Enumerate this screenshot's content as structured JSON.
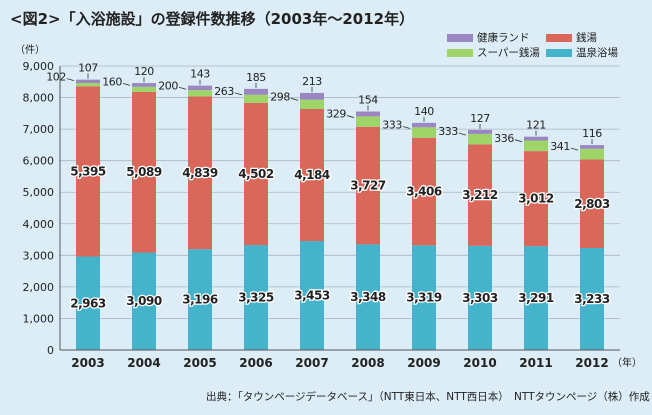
{
  "title": "<図2>「入浴施設」の登録件数推移（2003年〜2012年）",
  "source": "出典：「タウンページデータベース」（NTT東日本、NTT西日本）　NTTタウンページ（株）作成",
  "colors": {
    "健康ランド": "#9b86c2",
    "銭湯": "#d9675a",
    "スーパー銭湯": "#9fd468",
    "温泉浴場": "#45b3c9",
    "background": "#dcedf7",
    "gridline": "#a9b7c2"
  },
  "chart_data": {
    "type": "bar",
    "stacked": true,
    "categories": [
      "2003",
      "2004",
      "2005",
      "2006",
      "2007",
      "2008",
      "2009",
      "2010",
      "2011",
      "2012"
    ],
    "series": [
      {
        "name": "温泉浴場",
        "values": [
          2963,
          3090,
          3196,
          3325,
          3453,
          3348,
          3319,
          3303,
          3291,
          3233
        ]
      },
      {
        "name": "銭湯",
        "values": [
          5395,
          5089,
          4839,
          4502,
          4184,
          3727,
          3406,
          3212,
          3012,
          2803
        ]
      },
      {
        "name": "スーパー銭湯",
        "values": [
          102,
          160,
          200,
          263,
          298,
          329,
          333,
          333,
          336,
          341
        ]
      },
      {
        "name": "健康ランド",
        "values": [
          107,
          120,
          143,
          185,
          213,
          154,
          140,
          127,
          121,
          116
        ]
      }
    ],
    "yunit": "（件）",
    "xunit": "（年）",
    "ylim": [
      0,
      9000
    ],
    "yticks": [
      0,
      1000,
      2000,
      3000,
      4000,
      5000,
      6000,
      7000,
      8000,
      9000
    ],
    "ytick_labels": [
      "0",
      "1,000",
      "2,000",
      "3,000",
      "4,000",
      "5,000",
      "6,000",
      "7,000",
      "8,000",
      "9,000"
    ],
    "legend": [
      {
        "name": "健康ランド",
        "position": "top-left"
      },
      {
        "name": "銭湯",
        "position": "top-right"
      },
      {
        "name": "スーパー銭湯",
        "position": "bottom-left"
      },
      {
        "name": "温泉浴場",
        "position": "bottom-right"
      }
    ],
    "grid": true
  }
}
